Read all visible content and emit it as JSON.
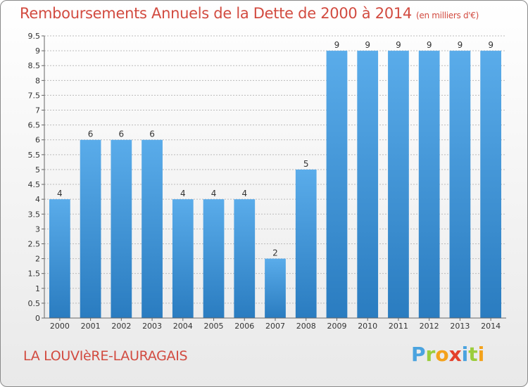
{
  "header": {
    "title": "Remboursements Annuels de la Dette de 2000 à 2014",
    "unit": "(en milliers d'€)"
  },
  "footer": {
    "commune": "LA LOUVIèRE-LAURAGAIS",
    "brand": "Proxiti"
  },
  "colors": {
    "title": "#d24b40",
    "bar_top": "#5aacea",
    "bar_bottom": "#2a7cc0",
    "grid": "#bbbbbb"
  },
  "chart_data": {
    "type": "bar",
    "title": "Remboursements Annuels de la Dette de 2000 à 2014",
    "subtitle": "(en milliers d'€)",
    "categories": [
      "2000",
      "2001",
      "2002",
      "2003",
      "2004",
      "2005",
      "2006",
      "2007",
      "2008",
      "2009",
      "2010",
      "2011",
      "2012",
      "2013",
      "2014"
    ],
    "values": [
      4,
      6,
      6,
      6,
      4,
      4,
      4,
      2,
      5,
      9,
      9,
      9,
      9,
      9,
      9
    ],
    "value_labels": [
      "4",
      "6",
      "6",
      "6",
      "4",
      "4",
      "4",
      "2",
      "5",
      "9",
      "9",
      "9",
      "9",
      "9",
      "9"
    ],
    "ylim": [
      0,
      9.5
    ],
    "yticks": [
      "0",
      "0.5",
      "1",
      "1.5",
      "2",
      "2.5",
      "3",
      "3.5",
      "4",
      "4.5",
      "5",
      "5.5",
      "6",
      "6.5",
      "7",
      "7.5",
      "8",
      "8.5",
      "9",
      "9.5"
    ],
    "grid": true,
    "legend": "none"
  }
}
